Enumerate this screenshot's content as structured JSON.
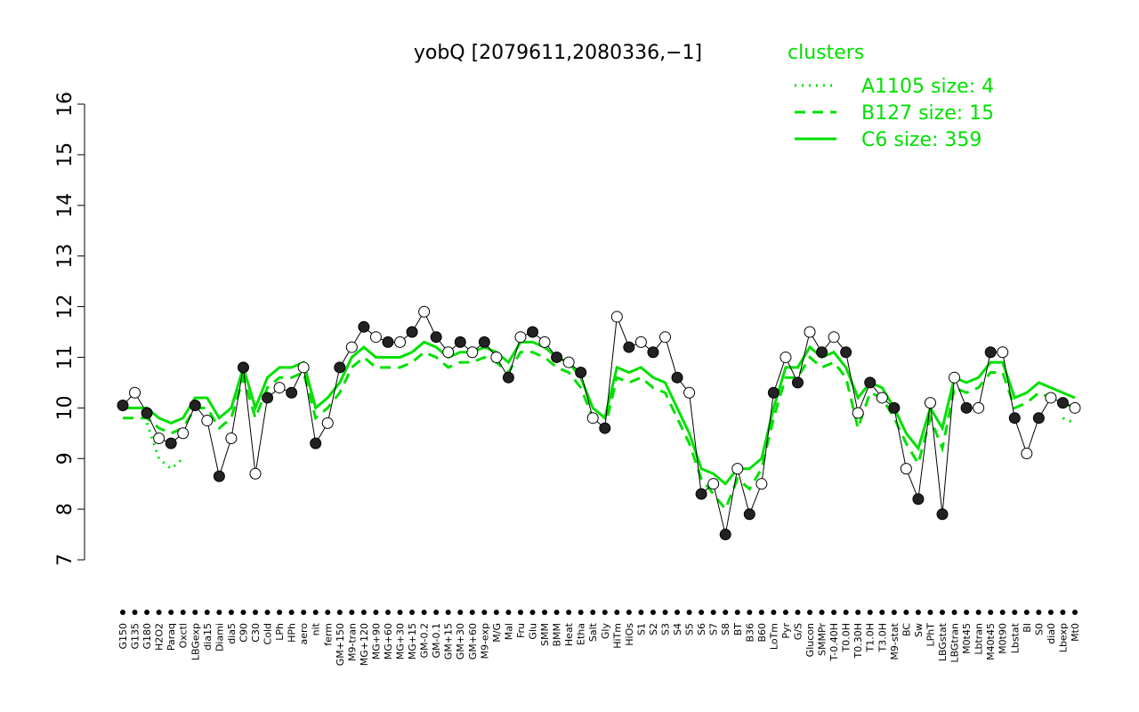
{
  "chart_data": {
    "type": "line",
    "title": "yobQ [2079611,2080336,−1]",
    "legend_title": "clusters",
    "categories": [
      "G150",
      "G135",
      "G180",
      "H2O2",
      "Paraq",
      "Oxctl",
      "LBGexp",
      "dia15",
      "Diami",
      "dia5",
      "C90",
      "C30",
      "Cold",
      "LPh",
      "HPh",
      "aero",
      "nit",
      "ferm",
      "GM+150",
      "M9-tran",
      "MG+120",
      "MG+90",
      "MG+60",
      "MG+30",
      "MG+15",
      "GM-0.2",
      "GM-0.1",
      "GM+15",
      "GM+30",
      "GM+60",
      "M9-exp",
      "M/G",
      "Mal",
      "Fru",
      "Glu",
      "SMM",
      "BMM",
      "Heat",
      "Etha",
      "Salt",
      "Gly",
      "HiTm",
      "HiOs",
      "S1",
      "S2",
      "S3",
      "S4",
      "S5",
      "S6",
      "S7",
      "S8",
      "BT",
      "B36",
      "B60",
      "LoTm",
      "Pyr",
      "G/S",
      "Glucon",
      "SMMPr",
      "T-0.40H",
      "T0.0H",
      "T0.30H",
      "T1.0H",
      "T3.0H",
      "M9-stat",
      "BC",
      "Sw",
      "LPhT",
      "LBGstat",
      "LBGtran",
      "M0t45",
      "Lbtran",
      "M40t45",
      "M0t90",
      "Lbstat",
      "BI",
      "S0",
      "dia0",
      "Lbexp",
      "Mt0"
    ],
    "values": [
      10.05,
      10.3,
      9.9,
      9.4,
      9.3,
      9.5,
      10.05,
      9.75,
      8.65,
      9.4,
      10.8,
      8.7,
      10.2,
      10.4,
      10.3,
      10.8,
      9.3,
      9.7,
      10.8,
      11.2,
      11.6,
      11.4,
      11.3,
      11.3,
      11.5,
      11.9,
      11.4,
      11.1,
      11.3,
      11.1,
      11.3,
      11.0,
      10.6,
      11.4,
      11.5,
      11.3,
      11.0,
      10.9,
      10.7,
      9.8,
      9.6,
      11.8,
      11.2,
      11.3,
      11.1,
      11.4,
      10.6,
      10.3,
      8.3,
      8.5,
      7.5,
      8.8,
      7.9,
      8.5,
      10.3,
      11.0,
      10.5,
      11.5,
      11.1,
      11.4,
      11.1,
      9.9,
      10.5,
      10.2,
      10.0,
      8.8,
      8.2,
      10.1,
      7.9,
      10.6,
      10.0,
      10.0,
      11.1,
      11.1,
      9.8,
      9.1,
      9.8,
      10.2,
      10.1,
      10.0
    ],
    "color": "#000000",
    "series": [
      {
        "name": "A1105 size: 4",
        "color": "#00e000",
        "dash": "dotted",
        "values": [
          null,
          null,
          9.7,
          9.0,
          8.8,
          9.0,
          null,
          null,
          null,
          null,
          null,
          null,
          null,
          null,
          null,
          null,
          null,
          null,
          null,
          null,
          null,
          null,
          null,
          null,
          null,
          null,
          null,
          null,
          null,
          null,
          null,
          null,
          null,
          null,
          null,
          null,
          null,
          null,
          null,
          null,
          null,
          null,
          null,
          null,
          null,
          null,
          null,
          null,
          null,
          null,
          null,
          null,
          null,
          null,
          null,
          null,
          null,
          null,
          null,
          null,
          null,
          null,
          null,
          null,
          null,
          null,
          null,
          null,
          null,
          null,
          null,
          null,
          null,
          null,
          null,
          null,
          null,
          null,
          9.8,
          9.7
        ]
      },
      {
        "name": "B127 size: 15",
        "color": "#00e000",
        "dash": "dashed",
        "values": [
          9.8,
          9.8,
          9.8,
          9.6,
          9.5,
          9.6,
          10.0,
          10.0,
          9.6,
          9.8,
          10.6,
          9.8,
          10.4,
          10.6,
          10.6,
          10.7,
          9.8,
          10.0,
          10.3,
          10.8,
          11.0,
          10.8,
          10.8,
          10.8,
          10.9,
          11.1,
          11.0,
          10.8,
          10.9,
          10.9,
          11.0,
          10.9,
          10.7,
          11.1,
          11.1,
          11.0,
          10.8,
          10.7,
          10.4,
          9.8,
          9.6,
          10.6,
          10.5,
          10.6,
          10.4,
          10.3,
          9.8,
          9.3,
          8.6,
          8.3,
          8.0,
          8.6,
          8.4,
          8.8,
          9.8,
          10.6,
          10.6,
          11.0,
          10.8,
          10.9,
          10.6,
          9.6,
          10.3,
          10.2,
          9.8,
          9.3,
          8.9,
          9.8,
          9.2,
          10.4,
          10.3,
          10.4,
          10.7,
          10.7,
          10.0,
          10.1,
          10.3,
          10.2,
          10.1,
          10.0
        ]
      },
      {
        "name": "C6 size: 359",
        "color": "#00e000",
        "dash": "solid",
        "values": [
          10.0,
          10.0,
          10.0,
          9.8,
          9.7,
          9.8,
          10.2,
          10.2,
          9.8,
          10.0,
          10.8,
          10.0,
          10.6,
          10.8,
          10.8,
          10.9,
          10.0,
          10.2,
          10.5,
          11.0,
          11.2,
          11.0,
          11.0,
          11.0,
          11.1,
          11.3,
          11.2,
          11.0,
          11.1,
          11.1,
          11.2,
          11.1,
          10.9,
          11.3,
          11.3,
          11.2,
          11.0,
          10.9,
          10.6,
          10.0,
          9.8,
          10.8,
          10.7,
          10.8,
          10.6,
          10.5,
          10.0,
          9.5,
          8.8,
          8.7,
          8.5,
          8.8,
          8.8,
          9.0,
          10.0,
          10.8,
          10.8,
          11.2,
          11.0,
          11.1,
          10.8,
          10.2,
          10.5,
          10.4,
          10.0,
          9.5,
          9.2,
          10.0,
          9.6,
          10.6,
          10.5,
          10.6,
          10.9,
          10.9,
          10.2,
          10.3,
          10.5,
          10.4,
          10.3,
          10.2
        ]
      }
    ],
    "ylim": [
      7,
      16
    ],
    "yticks": [
      7,
      8,
      9,
      10,
      11,
      12,
      13,
      14,
      15,
      16
    ]
  }
}
